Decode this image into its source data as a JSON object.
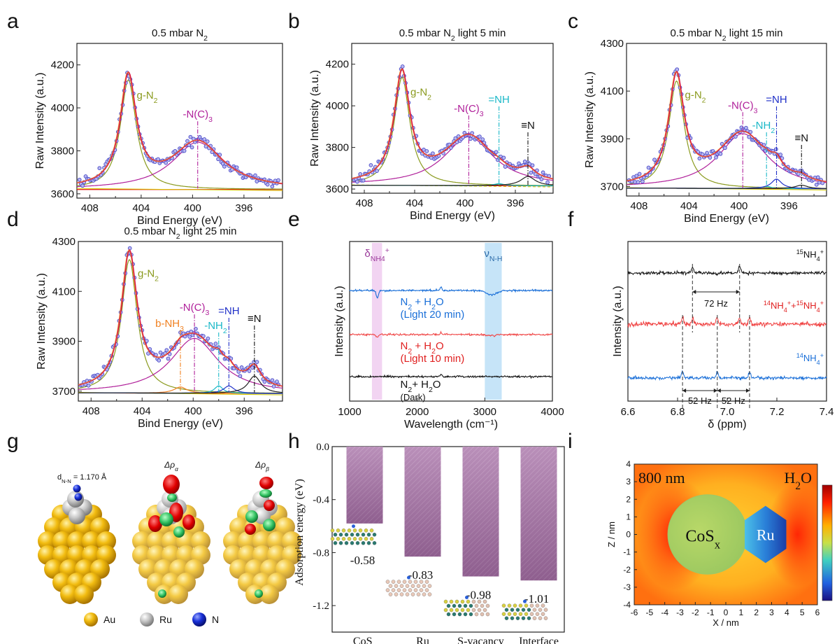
{
  "figure": {
    "panel_letters": [
      "a",
      "b",
      "c",
      "d",
      "e",
      "f",
      "g",
      "h",
      "i"
    ]
  },
  "chart_data": [
    {
      "panel": "a",
      "type": "scatter",
      "title": "0.5 mbar N2",
      "xlabel": "Bind Energy (eV)",
      "ylabel": "Raw Intensity (a.u.)",
      "xlim": [
        409,
        393
      ],
      "ylim": [
        3580,
        4300
      ],
      "x_reversed": true,
      "xticks": [
        408,
        404,
        400,
        396
      ],
      "yticks": [
        3600,
        3800,
        4000,
        4200
      ],
      "baseline": 3620,
      "peaks": [
        {
          "name": "g-N2",
          "center": 405.0,
          "height": 4130,
          "width": 0.75,
          "color": "#8a9a1e"
        },
        {
          "name": "-N(C)3",
          "center": 399.6,
          "height": 3840,
          "width": 2.4,
          "color": "#b0209a"
        }
      ]
    },
    {
      "panel": "b",
      "type": "scatter",
      "title": "0.5 mbar N2 light 5 min",
      "xlabel": "Bind Energy (eV)",
      "ylabel": "Raw Intensity (a.u.)",
      "xlim": [
        409,
        393
      ],
      "ylim": [
        3580,
        4300
      ],
      "x_reversed": true,
      "xticks": [
        408,
        404,
        400,
        396
      ],
      "yticks": [
        3600,
        3800,
        4000,
        4200
      ],
      "baseline": 3615,
      "peaks": [
        {
          "name": "g-N2",
          "center": 405.0,
          "height": 4135,
          "width": 0.75,
          "color": "#8a9a1e"
        },
        {
          "name": "-N(C)3",
          "center": 399.7,
          "height": 3850,
          "width": 2.4,
          "color": "#b0209a"
        },
        {
          "name": "=NH",
          "center": 397.3,
          "height": 3625,
          "width": 0.5,
          "color": "#1ab8c8"
        },
        {
          "name": "≡N",
          "center": 395.0,
          "height": 3660,
          "width": 0.7,
          "color": "#222222"
        }
      ]
    },
    {
      "panel": "c",
      "type": "scatter",
      "title": "0.5 mbar N2 light 15 min",
      "xlabel": "Bind Energy (eV)",
      "ylabel": "Raw Intensity (a.u.)",
      "xlim": [
        409,
        393
      ],
      "ylim": [
        3660,
        4300
      ],
      "x_reversed": true,
      "xticks": [
        408,
        404,
        400,
        396
      ],
      "yticks": [
        3700,
        3900,
        4100,
        4300
      ],
      "baseline": 3690,
      "peaks": [
        {
          "name": "g-N2",
          "center": 405.0,
          "height": 4140,
          "width": 0.75,
          "color": "#8a9a1e"
        },
        {
          "name": "-N(C)3",
          "center": 399.7,
          "height": 3920,
          "width": 2.4,
          "color": "#b0209a"
        },
        {
          "name": "-NH2",
          "center": 397.8,
          "height": 3700,
          "width": 0.4,
          "color": "#1ab8c8"
        },
        {
          "name": "=NH",
          "center": 397.0,
          "height": 3730,
          "width": 0.5,
          "color": "#2030c8"
        },
        {
          "name": "≡N",
          "center": 395.0,
          "height": 3705,
          "width": 0.6,
          "color": "#222222"
        }
      ]
    },
    {
      "panel": "d",
      "type": "scatter",
      "title": "0.5 mbar N2 light 25 min",
      "xlabel": "Bind Energy (eV)",
      "ylabel": "Raw Intensity (a.u.)",
      "xlim": [
        409,
        393
      ],
      "ylim": [
        3660,
        4300
      ],
      "x_reversed": true,
      "xticks": [
        408,
        404,
        400,
        396
      ],
      "yticks": [
        3700,
        3900,
        4100,
        4300
      ],
      "baseline": 3690,
      "peaks": [
        {
          "name": "g-N2",
          "center": 405.0,
          "height": 4225,
          "width": 0.75,
          "color": "#8a9a1e"
        },
        {
          "name": "b-NH3",
          "center": 401.0,
          "height": 3715,
          "width": 0.6,
          "color": "#f08020"
        },
        {
          "name": "-N(C)3",
          "center": 399.9,
          "height": 3910,
          "width": 2.3,
          "color": "#b0209a"
        },
        {
          "name": "-NH2",
          "center": 398.0,
          "height": 3720,
          "width": 0.4,
          "color": "#1ab8c8"
        },
        {
          "name": "=NH",
          "center": 397.2,
          "height": 3720,
          "width": 0.5,
          "color": "#2030c8"
        },
        {
          "name": "≡N",
          "center": 395.2,
          "height": 3760,
          "width": 0.6,
          "color": "#222222"
        }
      ]
    },
    {
      "panel": "e",
      "type": "line",
      "xlabel": "Wavelength (cm⁻¹)",
      "ylabel": "Intensity (a.u.)",
      "xlim": [
        1000,
        4000
      ],
      "xticks": [
        1000,
        2000,
        3000,
        4000
      ],
      "bands": [
        {
          "label": "δNH4+",
          "from": 1330,
          "to": 1480,
          "color": "#f2d4f2"
        },
        {
          "label": "νN-H",
          "from": 3000,
          "to": 3250,
          "color": "#c6e4f8"
        }
      ],
      "series": [
        {
          "name": "N2 + H2O",
          "sub": "(Light 20 min)",
          "color": "#1a6fd8",
          "label_color": "#1a6fd8"
        },
        {
          "name": "N2 + H2O",
          "sub": "(Light 10 min)",
          "color": "#f04848",
          "label_color": "#e02020"
        },
        {
          "name": "N2+ H2O",
          "sub": "(Dark)",
          "color": "#111111",
          "label_color": "#111111"
        }
      ]
    },
    {
      "panel": "f",
      "type": "line",
      "xlabel": "δ (ppm)",
      "ylabel": "Intensity (a.u.)",
      "xlim": [
        6.6,
        7.4
      ],
      "xticks": [
        6.6,
        6.8,
        7.0,
        7.2,
        7.4
      ],
      "series": [
        {
          "name": "15NH4+",
          "color": "#111111",
          "peaks": [
            6.86,
            7.05
          ]
        },
        {
          "name": "14NH4++15NH4+",
          "color": "#f04040",
          "peaks": [
            6.82,
            6.86,
            6.96,
            7.05,
            7.09
          ]
        },
        {
          "name": "14NH4+",
          "color": "#1a6fd8",
          "peaks": [
            6.82,
            6.96,
            7.09
          ]
        }
      ],
      "annotations": [
        "72 Hz",
        "52 Hz",
        "52 Hz"
      ]
    },
    {
      "panel": "h",
      "type": "bar",
      "ylabel": "Adsorption energy (eV)",
      "ylim": [
        -1.4,
        0.0
      ],
      "yticks": [
        0.0,
        -0.4,
        -0.8,
        -1.2
      ],
      "categories": [
        "CoSx",
        "Ru",
        "S-vacancy",
        "Interface"
      ],
      "values": [
        -0.58,
        -0.83,
        -0.98,
        -1.01
      ],
      "value_labels": [
        "-0.58",
        "-0.83",
        "-0.98",
        "-1.01"
      ],
      "bar_color": "#a878a8"
    },
    {
      "panel": "i",
      "type": "heatmap",
      "xlabel": "X / nm",
      "ylabel": "Z / nm",
      "xlim": [
        -6,
        6
      ],
      "ylim": [
        -4,
        4
      ],
      "xticks": [
        -6,
        -5,
        -4,
        -3,
        -2,
        -1,
        0,
        1,
        2,
        3,
        4,
        5,
        6
      ],
      "yticks": [
        -4,
        -3,
        -2,
        -1,
        0,
        1,
        2,
        3,
        4
      ],
      "annotations": [
        "800 nm",
        "H2O",
        "CoSx",
        "Ru"
      ]
    }
  ],
  "panel_g": {
    "labels": {
      "bond": "dN-N = 1.170 Å",
      "rho_a": "Δρα",
      "rho_b": "Δρβ"
    },
    "legend": [
      {
        "name": "Au",
        "color": "#f0b800"
      },
      {
        "name": "Ru",
        "color": "#b8b8b8"
      },
      {
        "name": "N",
        "color": "#1830d8"
      }
    ]
  }
}
